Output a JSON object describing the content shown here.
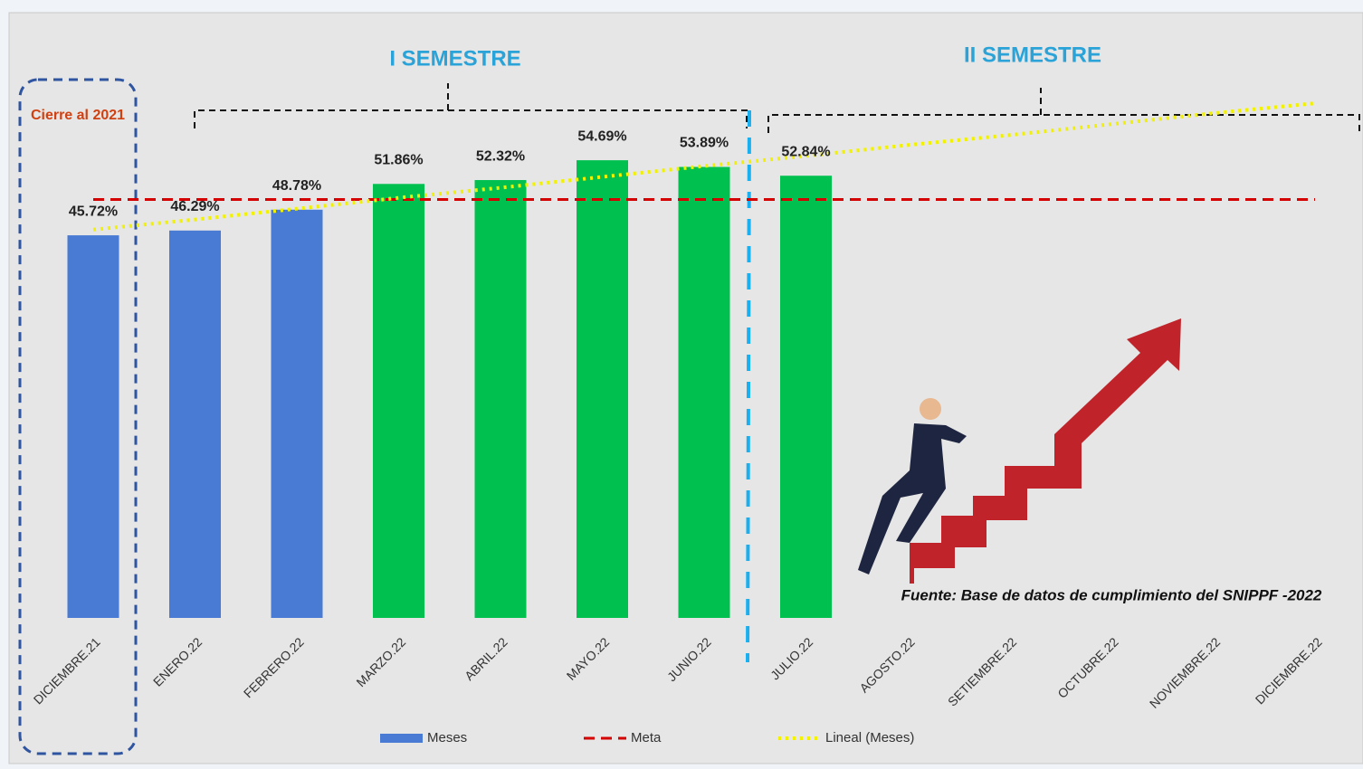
{
  "chart_data": {
    "type": "bar",
    "categories": [
      "DICIEMBRE.21",
      "ENERO.22",
      "FEBRERO.22",
      "MARZO.22",
      "ABRIL.22",
      "MAYO.22",
      "JUNIO.22",
      "JULIO.22",
      "AGOSTO.22",
      "SETIEMBRE.22",
      "OCTUBRE.22",
      "NOVIEMBRE.22",
      "DICIEMBRE.22"
    ],
    "series": [
      {
        "name": "Meses",
        "type": "bar",
        "color": "#4a7bd4",
        "colors": [
          "#4a7bd4",
          "#4a7bd4",
          "#4a7bd4",
          "#00c050",
          "#00c050",
          "#00c050",
          "#00c050",
          "#00c050",
          "#00c050",
          "#00c050",
          "#00c050",
          "#00c050",
          "#00c050"
        ],
        "values": [
          45.72,
          46.29,
          48.78,
          51.86,
          52.32,
          54.69,
          53.89,
          52.84,
          null,
          null,
          null,
          null,
          null
        ],
        "value_labels": [
          "45.72%",
          "46.29%",
          "48.78%",
          "51.86%",
          "52.32%",
          "54.69%",
          "53.89%",
          "52.84%",
          null,
          null,
          null,
          null,
          null
        ]
      },
      {
        "name": "Meta",
        "type": "line",
        "style": "dashed",
        "color": "#d40000",
        "values": [
          50,
          50,
          50,
          50,
          50,
          50,
          50,
          50,
          50,
          50,
          50,
          50,
          50
        ]
      },
      {
        "name": "Lineal (Meses)",
        "type": "line",
        "style": "dotted",
        "color": "#f2f200",
        "values": [
          46.4,
          47.6,
          48.9,
          50.2,
          51.4,
          52.7,
          54.0,
          55.2,
          56.5,
          57.7,
          59.0,
          60.3,
          61.5
        ]
      }
    ],
    "ylim": [
      0,
      70
    ],
    "annotations": {
      "first_half": "I SEMESTRE",
      "second_half": "II SEMESTRE",
      "closing": "Cierre al 2021",
      "source": "Fuente: Base de datos de cumplimiento del SNIPPF -2022"
    }
  }
}
